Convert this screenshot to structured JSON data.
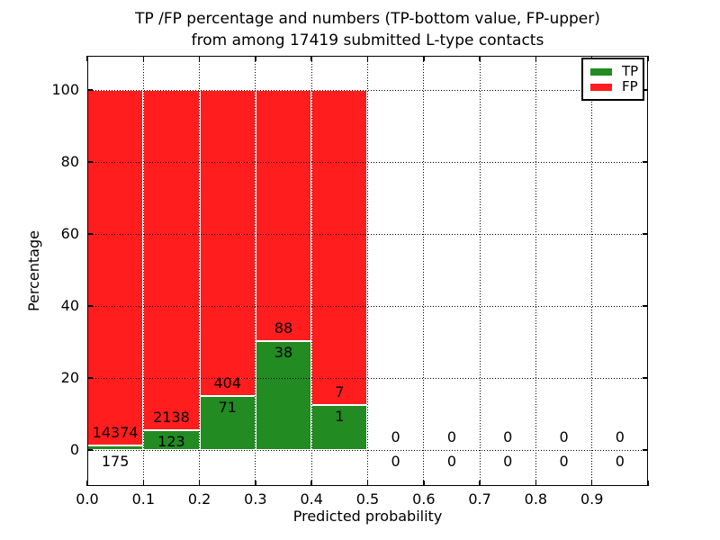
{
  "title": {
    "line1": "TP /FP percentage and numbers (TP-bottom value, FP-upper)",
    "line2": "from among 17419 submitted L-type contacts"
  },
  "axes": {
    "xlabel": "Predicted probability",
    "ylabel": "Percentage",
    "x_tick_labels": [
      "0.0",
      "0.1",
      "0.2",
      "0.3",
      "0.4",
      "0.5",
      "0.6",
      "0.7",
      "0.8",
      "0.9"
    ],
    "y_tick_labels": [
      "0",
      "20",
      "40",
      "60",
      "80",
      "100"
    ]
  },
  "legend": {
    "position": "upper right",
    "items": [
      {
        "label": "TP",
        "color": "#228B22"
      },
      {
        "label": "FP",
        "color": "#FF1D1D"
      }
    ]
  },
  "chart_data": {
    "type": "bar",
    "stacked_percentage": true,
    "title": "TP /FP percentage and numbers (TP-bottom value, FP-upper) from among 17419 submitted L-type contacts",
    "total_submitted": 17419,
    "xlabel": "Predicted probability",
    "ylabel": "Percentage",
    "xlim": [
      0.0,
      1.0
    ],
    "ylim": [
      -10,
      109.5
    ],
    "x_ticks": [
      0.0,
      0.1,
      0.2,
      0.3,
      0.4,
      0.5,
      0.6,
      0.7,
      0.8,
      0.9
    ],
    "y_ticks": [
      0,
      20,
      40,
      60,
      80,
      100
    ],
    "grid": "dotted",
    "legend_position": "upper right",
    "colors": {
      "tp": "#228B22",
      "fp": "#FF1D1D",
      "edge": "#FFFFFF"
    },
    "bins": [
      {
        "range": [
          0.0,
          0.1
        ],
        "tp": 175,
        "fp": 14374,
        "tp_percent": 1.2,
        "fp_percent": 98.8
      },
      {
        "range": [
          0.1,
          0.2
        ],
        "tp": 123,
        "fp": 2138,
        "tp_percent": 5.4,
        "fp_percent": 94.6
      },
      {
        "range": [
          0.2,
          0.3
        ],
        "tp": 71,
        "fp": 404,
        "tp_percent": 14.9,
        "fp_percent": 85.1
      },
      {
        "range": [
          0.3,
          0.4
        ],
        "tp": 38,
        "fp": 88,
        "tp_percent": 30.2,
        "fp_percent": 69.8
      },
      {
        "range": [
          0.4,
          0.5
        ],
        "tp": 1,
        "fp": 7,
        "tp_percent": 12.5,
        "fp_percent": 87.5
      },
      {
        "range": [
          0.5,
          0.6
        ],
        "tp": 0,
        "fp": 0,
        "tp_percent": 0,
        "fp_percent": 0
      },
      {
        "range": [
          0.6,
          0.7
        ],
        "tp": 0,
        "fp": 0,
        "tp_percent": 0,
        "fp_percent": 0
      },
      {
        "range": [
          0.7,
          0.8
        ],
        "tp": 0,
        "fp": 0,
        "tp_percent": 0,
        "fp_percent": 0
      },
      {
        "range": [
          0.8,
          0.9
        ],
        "tp": 0,
        "fp": 0,
        "tp_percent": 0,
        "fp_percent": 0
      },
      {
        "range": [
          0.9,
          1.0
        ],
        "tp": 0,
        "fp": 0,
        "tp_percent": 0,
        "fp_percent": 0
      }
    ]
  }
}
